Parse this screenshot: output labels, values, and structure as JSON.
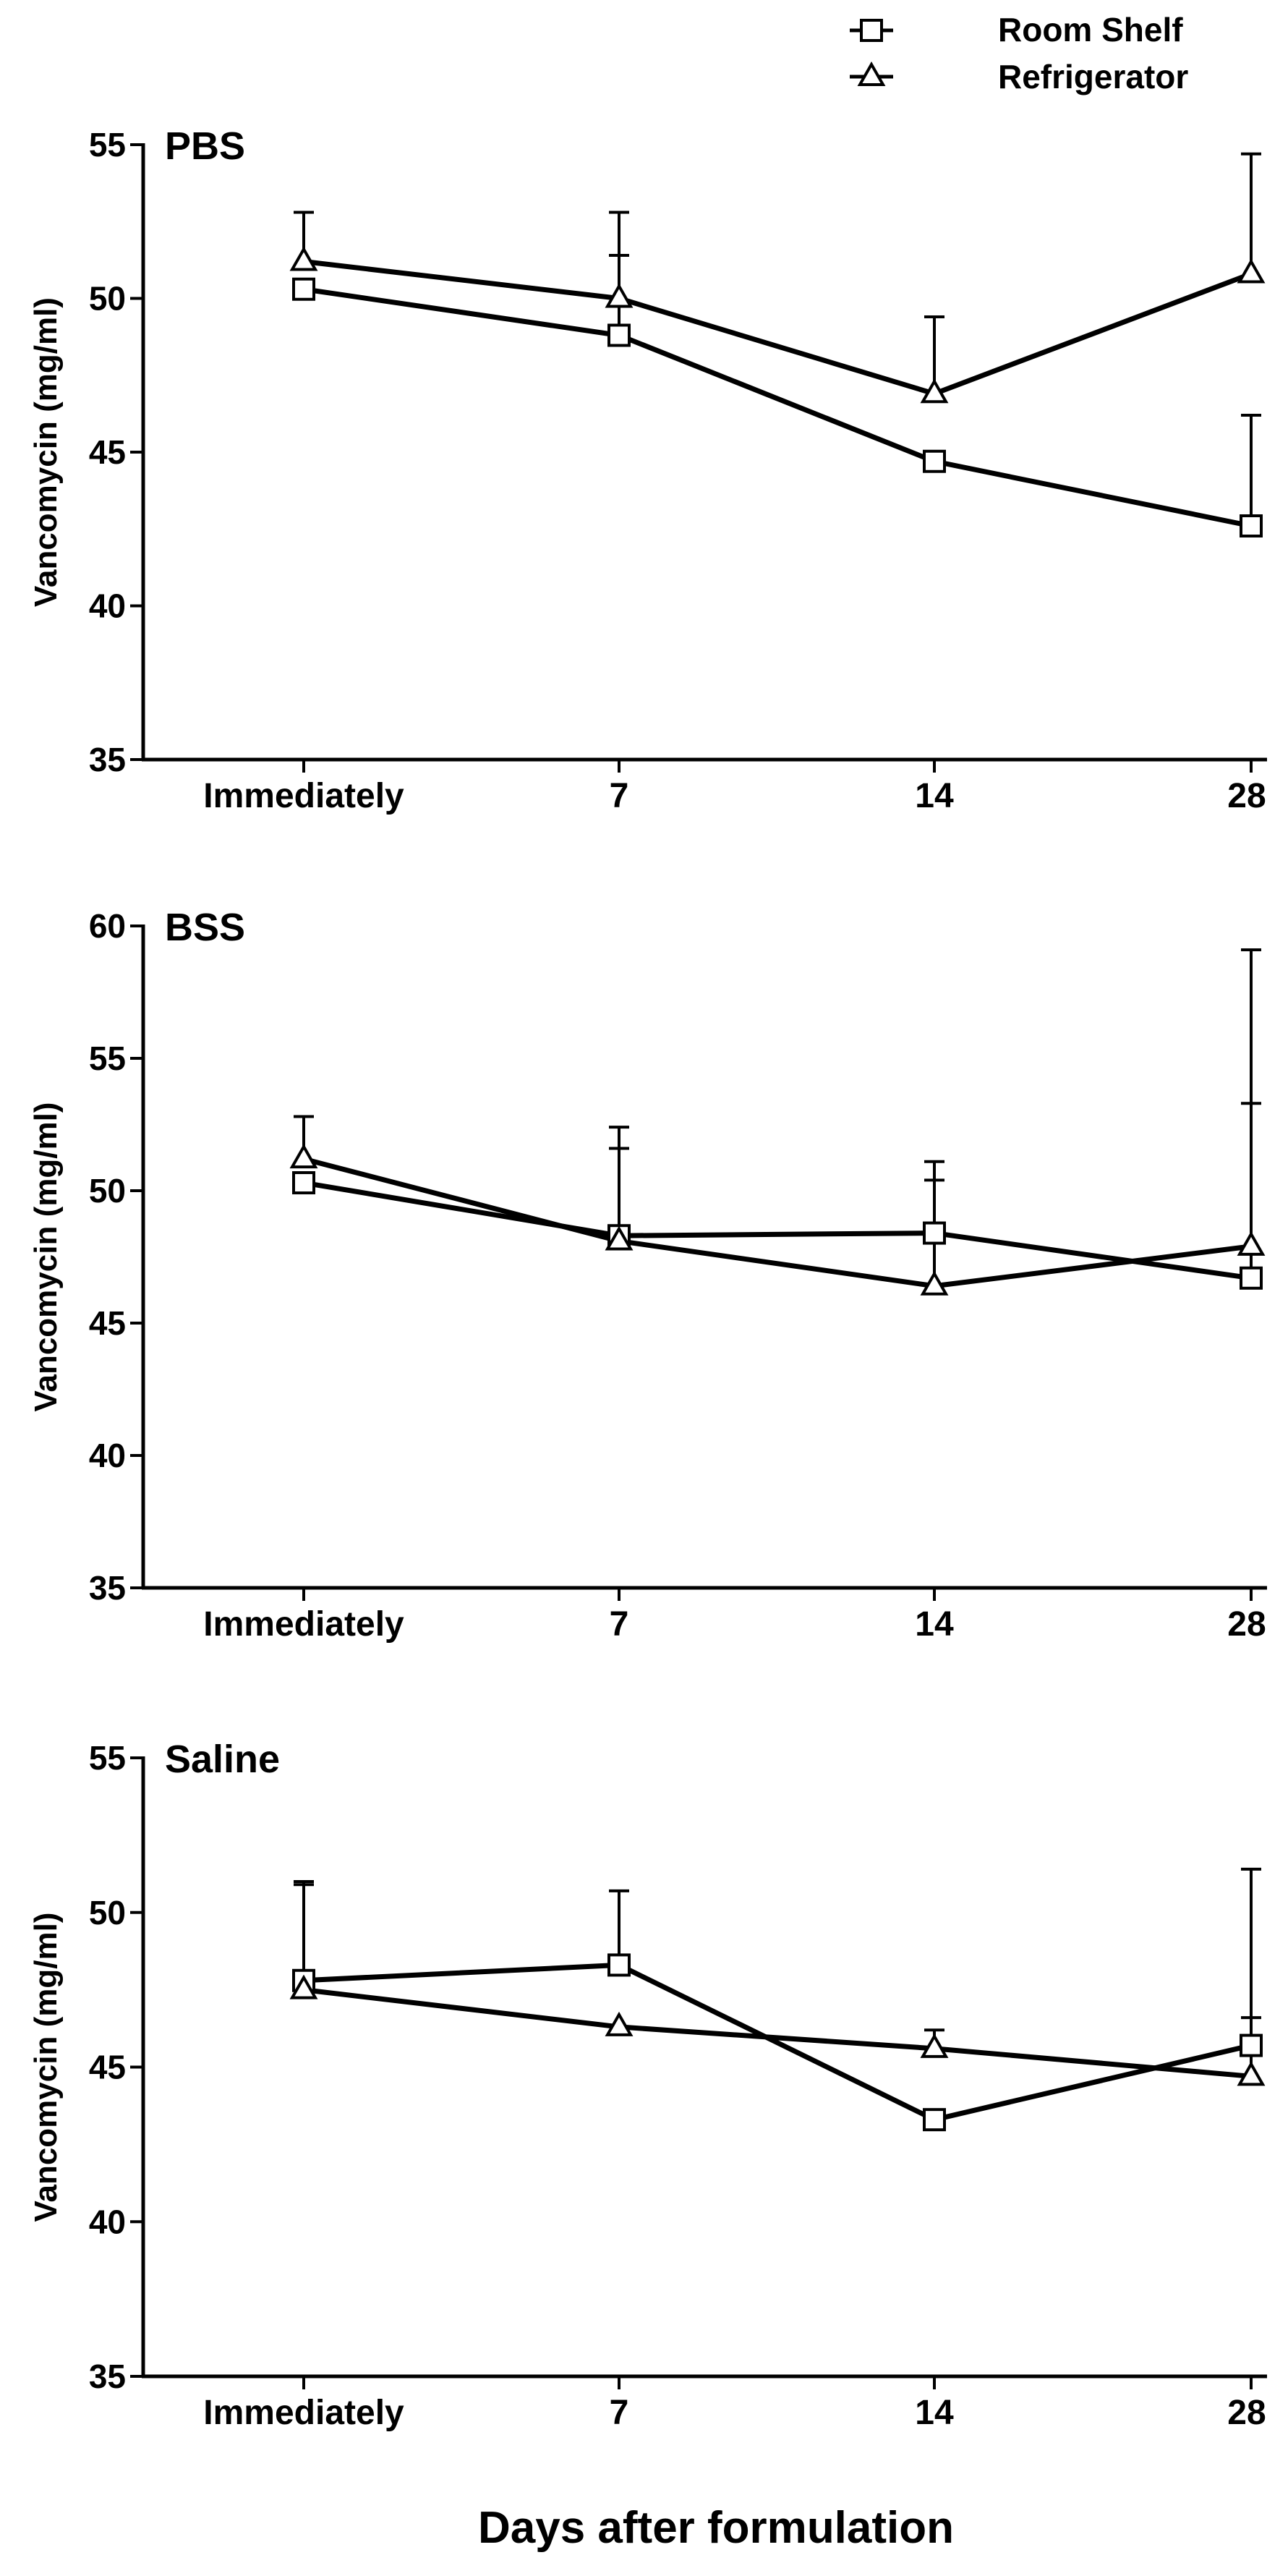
{
  "chart_data": [
    {
      "type": "line",
      "title": "PBS",
      "categories": [
        "Immediately",
        "7",
        "14",
        "28"
      ],
      "ylabel": "Vancomycin (mg/ml)",
      "ylim": [
        35,
        55
      ],
      "yticks": [
        35,
        40,
        45,
        50,
        55
      ],
      "series": [
        {
          "name": "Room Shelf",
          "marker": "square",
          "values": [
            50.3,
            48.8,
            44.7,
            42.6
          ],
          "err_upper": [
            null,
            51.4,
            null,
            46.2
          ]
        },
        {
          "name": "Refrigerator",
          "marker": "triangle",
          "values": [
            51.2,
            50.0,
            46.9,
            50.8
          ],
          "err_upper": [
            52.8,
            52.8,
            49.4,
            54.7
          ]
        }
      ]
    },
    {
      "type": "line",
      "title": "BSS",
      "categories": [
        "Immediately",
        "7",
        "14",
        "28"
      ],
      "ylabel": "Vancomycin (mg/ml)",
      "ylim": [
        35,
        60
      ],
      "yticks": [
        35,
        40,
        45,
        50,
        55,
        60
      ],
      "series": [
        {
          "name": "Room Shelf",
          "marker": "square",
          "values": [
            50.3,
            48.3,
            48.4,
            46.7
          ],
          "err_upper": [
            null,
            52.4,
            51.1,
            53.3
          ]
        },
        {
          "name": "Refrigerator",
          "marker": "triangle",
          "values": [
            51.2,
            48.1,
            46.4,
            47.9
          ],
          "err_upper": [
            52.8,
            51.6,
            50.4,
            59.1
          ]
        }
      ]
    },
    {
      "type": "line",
      "title": "Saline",
      "categories": [
        "Immediately",
        "7",
        "14",
        "28"
      ],
      "ylabel": "Vancomycin (mg/ml)",
      "ylim": [
        35,
        55
      ],
      "yticks": [
        35,
        40,
        45,
        50,
        55
      ],
      "series": [
        {
          "name": "Room Shelf",
          "marker": "square",
          "values": [
            47.8,
            48.3,
            43.3,
            45.7
          ],
          "err_upper": [
            51.0,
            50.7,
            43.6,
            51.4
          ]
        },
        {
          "name": "Refrigerator",
          "marker": "triangle",
          "values": [
            47.5,
            46.3,
            45.6,
            44.7
          ],
          "err_upper": [
            50.9,
            null,
            46.2,
            46.6
          ]
        }
      ]
    }
  ],
  "legend": {
    "position": "top-right",
    "items": [
      {
        "label": "Room Shelf",
        "marker": "square"
      },
      {
        "label": "Refrigerator",
        "marker": "triangle"
      }
    ]
  },
  "x_axis_title": "Days after formulation"
}
